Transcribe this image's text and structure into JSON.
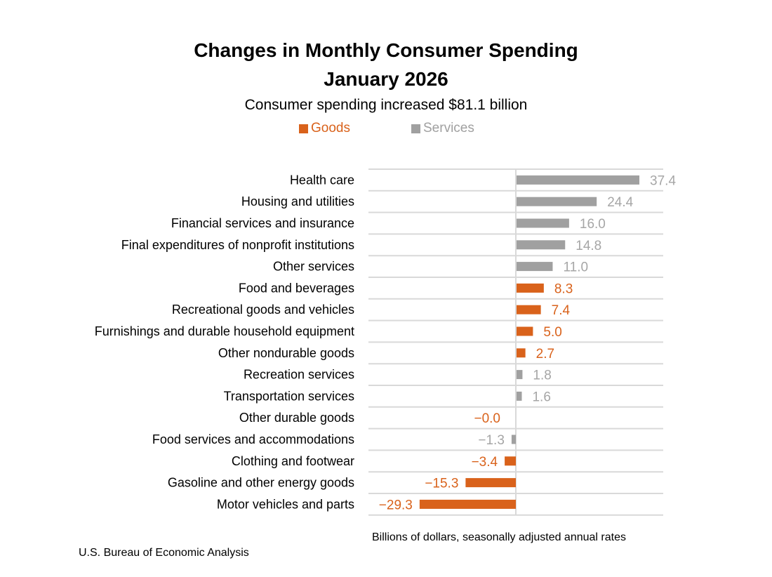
{
  "chart_data": {
    "type": "bar",
    "orientation": "horizontal",
    "title": "Changes in Monthly Consumer Spending",
    "title_line2": "January 2026",
    "subtitle": "Consumer spending increased $81.1 billion",
    "xlabel": "Billions of dollars, seasonally adjusted annual rates",
    "source": "U.S. Bureau of Economic Analysis",
    "legend": [
      {
        "name": "Goods",
        "color": "#D9621B"
      },
      {
        "name": "Services",
        "color": "#A0A0A0"
      }
    ],
    "legend_placement": "top",
    "grid": true,
    "xlim": [
      -45,
      45
    ],
    "categories": [
      "Health care",
      "Housing and utilities",
      "Financial services and insurance",
      "Final expenditures of nonprofit institutions",
      "Other services",
      "Food and beverages",
      "Recreational goods and vehicles",
      "Furnishings and durable household equipment",
      "Other nondurable goods",
      "Recreation services",
      "Transportation services",
      "Other durable goods",
      "Food services and accommodations",
      "Clothing and footwear",
      "Gasoline and other energy goods",
      "Motor vehicles and parts"
    ],
    "values": [
      37.4,
      24.4,
      16.0,
      14.8,
      11.0,
      8.3,
      7.4,
      5.0,
      2.7,
      1.8,
      1.6,
      -0.0,
      -1.3,
      -3.4,
      -15.3,
      -29.3
    ],
    "labels": [
      "37.4",
      "24.4",
      "16.0",
      "14.8",
      "11.0",
      "8.3",
      "7.4",
      "5.0",
      "2.7",
      "1.8",
      "1.6",
      "−0.0",
      "−1.3",
      "−3.4",
      "−15.3",
      "−29.3"
    ],
    "series_of": [
      "Services",
      "Services",
      "Services",
      "Services",
      "Services",
      "Goods",
      "Goods",
      "Goods",
      "Goods",
      "Services",
      "Services",
      "Goods",
      "Services",
      "Goods",
      "Goods",
      "Goods"
    ]
  }
}
